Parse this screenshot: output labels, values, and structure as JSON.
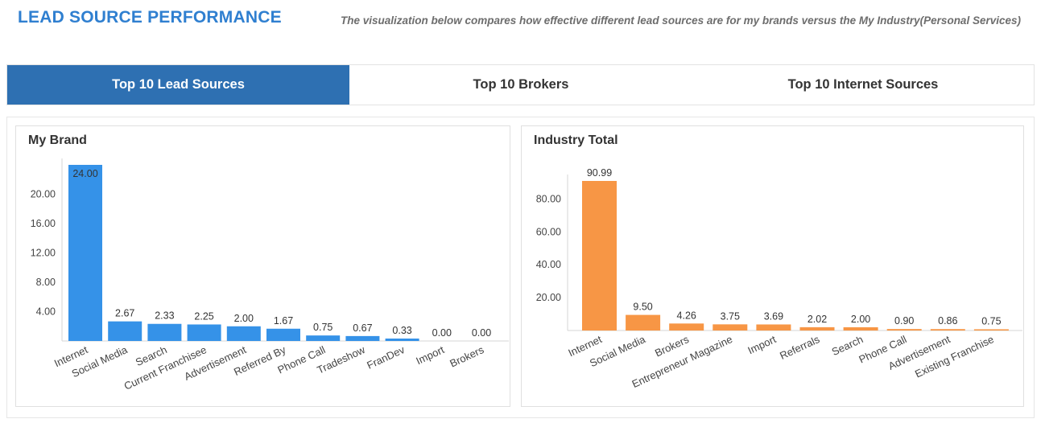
{
  "header": {
    "title": "LEAD SOURCE PERFORMANCE",
    "subtitle": "The visualization below compares how effective different lead sources are for my brands versus the My Industry(Personal Services)"
  },
  "tabs": [
    {
      "label": "Top 10 Lead Sources",
      "active": true
    },
    {
      "label": "Top 10 Brokers",
      "active": false
    },
    {
      "label": "Top 10 Internet Sources",
      "active": false
    }
  ],
  "colors": {
    "my_brand": "#3592e8",
    "industry": "#f79645",
    "active_tab": "#2e70b2",
    "title": "#2f7fd0"
  },
  "chart_data": [
    {
      "type": "bar",
      "title": "My Brand",
      "categories": [
        "Internet",
        "Social Media",
        "Search",
        "Current Franchisee",
        "Advertisement",
        "Referred By",
        "Phone Call",
        "Tradeshow",
        "FranDev",
        "Import",
        "Brokers"
      ],
      "values": [
        24.0,
        2.67,
        2.33,
        2.25,
        2.0,
        1.67,
        0.75,
        0.67,
        0.33,
        0.0,
        0.0
      ],
      "value_labels": [
        "24.00",
        "2.67",
        "2.33",
        "2.25",
        "2.00",
        "1.67",
        "0.75",
        "0.67",
        "0.33",
        "0.00",
        "0.00"
      ],
      "ytick_labels": [
        "4.00",
        "8.00",
        "12.00",
        "16.00",
        "20.00"
      ],
      "yticks": [
        4,
        8,
        12,
        16,
        20
      ],
      "ylim": [
        0,
        24
      ],
      "xlabel": "",
      "ylabel": ""
    },
    {
      "type": "bar",
      "title": "Industry Total",
      "categories": [
        "Internet",
        "Social Media",
        "Brokers",
        "Entrepreneur Magazine",
        "Import",
        "Referrals",
        "Search",
        "Phone Call",
        "Advertisement",
        "Existing Franchise"
      ],
      "values": [
        90.99,
        9.5,
        4.26,
        3.75,
        3.69,
        2.02,
        2.0,
        0.9,
        0.86,
        0.75
      ],
      "value_labels": [
        "90.99",
        "9.50",
        "4.26",
        "3.75",
        "3.69",
        "2.02",
        "2.00",
        "0.90",
        "0.86",
        "0.75"
      ],
      "ytick_labels": [
        "20.00",
        "40.00",
        "60.00",
        "80.00"
      ],
      "yticks": [
        20,
        40,
        60,
        80
      ],
      "ylim": [
        0,
        90.99
      ],
      "xlabel": "",
      "ylabel": ""
    }
  ]
}
